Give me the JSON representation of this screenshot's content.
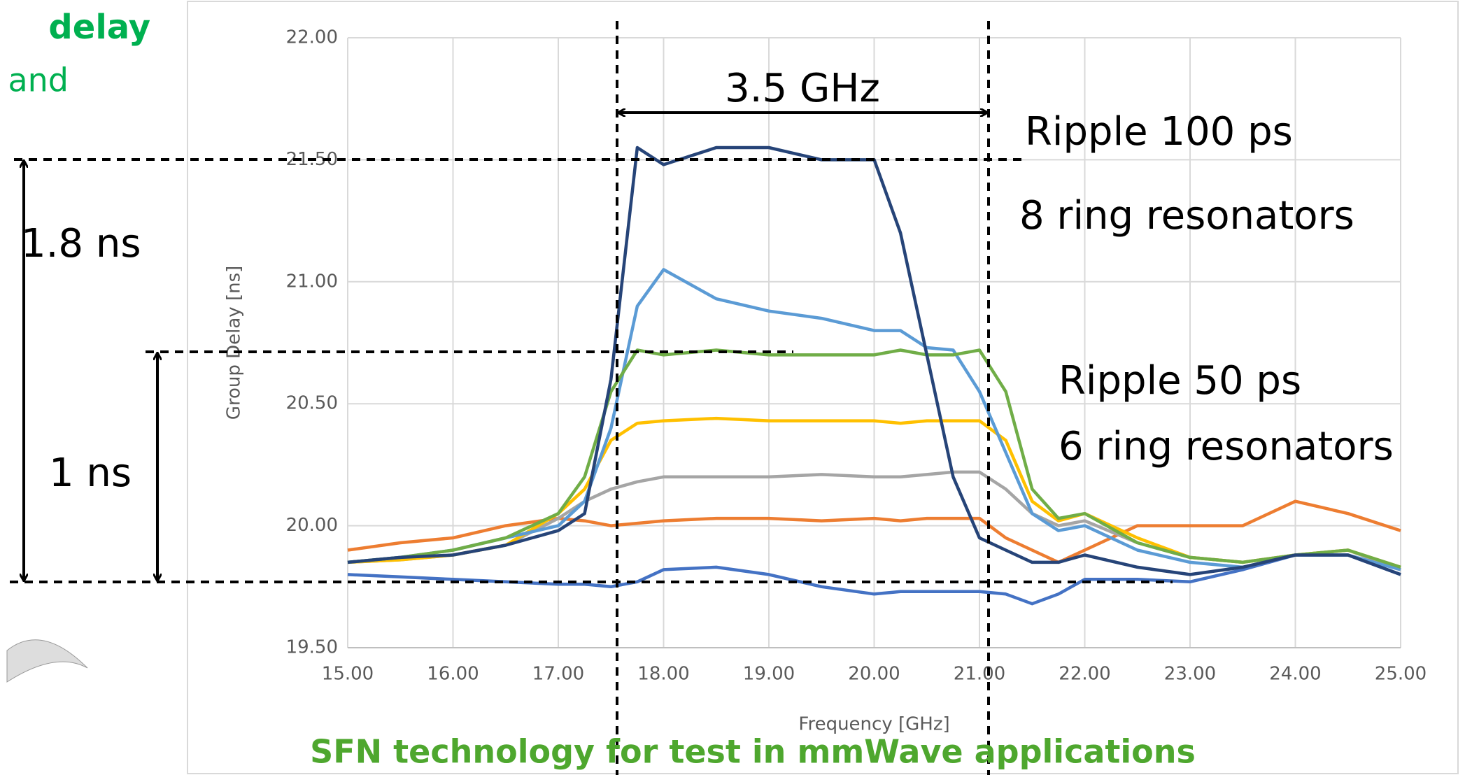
{
  "chart_data": {
    "type": "line",
    "x_label": "Frequency [GHz]",
    "y_label": "Group Delay [ns]",
    "x": [
      15,
      15.5,
      16,
      16.5,
      17,
      17.25,
      17.5,
      17.75,
      18,
      18.5,
      19,
      19.5,
      20,
      20.25,
      20.5,
      20.75,
      21,
      21.25,
      21.5,
      21.75,
      22,
      22.5,
      23,
      23.5,
      24,
      24.5,
      25
    ],
    "series": [
      {
        "color": "#4472c4",
        "values": [
          19.8,
          19.79,
          19.78,
          19.77,
          19.76,
          19.76,
          19.75,
          19.77,
          19.82,
          19.83,
          19.8,
          19.75,
          19.72,
          19.73,
          19.73,
          19.73,
          19.73,
          19.72,
          19.68,
          19.72,
          19.78,
          19.78,
          19.77,
          19.82,
          19.88,
          19.88,
          19.8
        ]
      },
      {
        "color": "#ed7d31",
        "values": [
          19.9,
          19.93,
          19.95,
          20.0,
          20.03,
          20.02,
          20.0,
          20.01,
          20.02,
          20.03,
          20.03,
          20.02,
          20.03,
          20.02,
          20.03,
          20.03,
          20.03,
          19.95,
          19.9,
          19.85,
          19.9,
          20.0,
          20.0,
          20.0,
          20.1,
          20.05,
          19.98
        ]
      },
      {
        "color": "#a5a5a5",
        "values": [
          19.85,
          19.86,
          19.88,
          19.92,
          20.03,
          20.1,
          20.15,
          20.18,
          20.2,
          20.2,
          20.2,
          20.21,
          20.2,
          20.2,
          20.21,
          20.22,
          20.22,
          20.15,
          20.05,
          20.0,
          20.02,
          19.93,
          19.87,
          19.85,
          19.88,
          19.9,
          19.82
        ]
      },
      {
        "color": "#ffc000",
        "values": [
          19.85,
          19.86,
          19.88,
          19.92,
          20.05,
          20.15,
          20.35,
          20.42,
          20.43,
          20.44,
          20.43,
          20.43,
          20.43,
          20.42,
          20.43,
          20.43,
          20.43,
          20.35,
          20.1,
          20.02,
          20.05,
          19.95,
          19.87,
          19.85,
          19.88,
          19.9,
          19.83
        ]
      },
      {
        "color": "#5b9bd5",
        "values": [
          19.85,
          19.87,
          19.9,
          19.95,
          20.0,
          20.1,
          20.4,
          20.9,
          21.05,
          20.93,
          20.88,
          20.85,
          20.8,
          20.8,
          20.73,
          20.72,
          20.55,
          20.3,
          20.05,
          19.98,
          20.0,
          19.9,
          19.85,
          19.83,
          19.88,
          19.88,
          19.82
        ]
      },
      {
        "color": "#70ad47",
        "values": [
          19.85,
          19.87,
          19.9,
          19.95,
          20.05,
          20.2,
          20.55,
          20.72,
          20.7,
          20.72,
          20.7,
          20.7,
          20.7,
          20.72,
          20.7,
          20.7,
          20.72,
          20.55,
          20.15,
          20.03,
          20.05,
          19.93,
          19.87,
          19.85,
          19.88,
          19.9,
          19.83
        ]
      },
      {
        "color": "#264478",
        "values": [
          19.85,
          19.87,
          19.88,
          19.92,
          19.98,
          20.05,
          20.6,
          21.55,
          21.48,
          21.55,
          21.55,
          21.5,
          21.5,
          21.2,
          20.7,
          20.2,
          19.95,
          19.9,
          19.85,
          19.85,
          19.88,
          19.83,
          19.8,
          19.83,
          19.88,
          19.88,
          19.8
        ]
      }
    ],
    "xlim": [
      15,
      25
    ],
    "xticks": [
      {
        "value": 15,
        "label": "15.00"
      },
      {
        "value": 16,
        "label": "16.00"
      },
      {
        "value": 17,
        "label": "17.00"
      },
      {
        "value": 18,
        "label": "18.00"
      },
      {
        "value": 19,
        "label": "19.00"
      },
      {
        "value": 20,
        "label": "20.00"
      },
      {
        "value": 21,
        "label": "21.00"
      },
      {
        "value": 22,
        "label": "22.00"
      },
      {
        "value": 23,
        "label": "23.00"
      },
      {
        "value": 24,
        "label": "24.00"
      },
      {
        "value": 25,
        "label": "25.00"
      }
    ],
    "ylim": [
      19.5,
      22
    ],
    "yticks": [
      {
        "value": 19.5,
        "label": "19.50"
      },
      {
        "value": 20,
        "label": "20.00"
      },
      {
        "value": 20.5,
        "label": "20.50"
      },
      {
        "value": 21,
        "label": "21.00"
      },
      {
        "value": 21.5,
        "label": "21.50"
      },
      {
        "value": 22,
        "label": "22.00"
      }
    ],
    "grid": true,
    "annotations": [
      "3.5 GHz",
      "Ripple 100 ps",
      "8 ring resonators",
      "1.8 ns",
      "1 ns",
      "Ripple 50 ps",
      "6 ring resonators"
    ]
  },
  "slide": {
    "heading_1": "delay",
    "heading_2": "and",
    "footer": "SFN technology for test in mmWave applications"
  }
}
